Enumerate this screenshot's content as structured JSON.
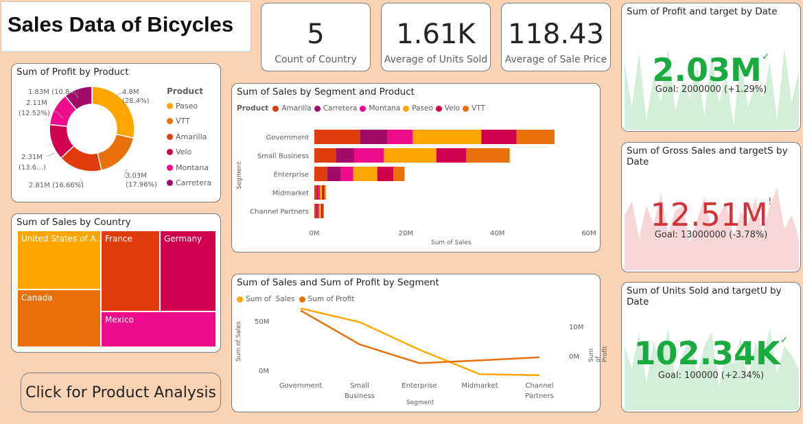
{
  "title": "Sales Data of Bicycles",
  "kpis": [
    {
      "value": "5",
      "label": "Count of Country"
    },
    {
      "value": "1.61K",
      "label": "Average of Units Sold"
    },
    {
      "value": "118.43",
      "label": "Average of Sale Price"
    }
  ],
  "colors": {
    "paseo": "#ffa600",
    "vtt": "#e8700a",
    "amarilla": "#e03c0c",
    "velo": "#d1004f",
    "montana": "#ef0c8c",
    "carretera": "#a10c68",
    "green": "#1aab40",
    "red": "#d13438"
  },
  "profit_by_product": {
    "title": "Sum of Profit by Product",
    "legend_title": "Product",
    "legend": [
      "Paseo",
      "VTT",
      "Amarilla",
      "Velo",
      "Montana",
      "Carretera"
    ],
    "labels": {
      "paseo_v": "4.8M",
      "paseo_p": "(28.4%)",
      "vtt_v": "3.03M",
      "vtt_p": "(17.96%)",
      "amarilla": "2.81M (16.66%)",
      "velo_v": "2.31M",
      "velo_p": "(13.6…)",
      "montana_v": "2.11M",
      "montana_p": "(12.52%)",
      "carretera": "1.83M (10.8…)"
    },
    "chart_data": {
      "type": "pie",
      "categories": [
        "Paseo",
        "VTT",
        "Amarilla",
        "Velo",
        "Montana",
        "Carretera"
      ],
      "values": [
        4.8,
        3.03,
        2.81,
        2.31,
        2.11,
        1.83
      ],
      "percents": [
        28.4,
        17.96,
        16.66,
        13.6,
        12.52,
        10.8
      ]
    }
  },
  "sales_by_country": {
    "title": "Sum of Sales by Country",
    "tiles": [
      "United States of A...",
      "France",
      "Germany",
      "Canada",
      "Mexico"
    ]
  },
  "button_label": "Click for Product Analysis",
  "segment_product": {
    "title": "Sum of Sales by Segment and Product",
    "legend_title": "Product",
    "legend": [
      "Amarilla",
      "Carretera",
      "Montana",
      "Paseo",
      "Velo",
      "VTT"
    ],
    "y_axis_title": "Segment",
    "x_axis_title": "Sum of Sales",
    "x_ticks": [
      "0M",
      "20M",
      "40M",
      "60M"
    ],
    "chart_data": {
      "type": "bar",
      "categories": [
        "Government",
        "Small Business",
        "Enterprise",
        "Midmarket",
        "Channel Partners"
      ],
      "series": [
        {
          "name": "Amarilla",
          "values": [
            10,
            4.7,
            2.8,
            0.5,
            0.4
          ]
        },
        {
          "name": "Carretera",
          "values": [
            6,
            4,
            3,
            0.3,
            0.3
          ]
        },
        {
          "name": "Montana",
          "values": [
            5.5,
            6.5,
            2.7,
            0.4,
            0.3
          ]
        },
        {
          "name": "Paseo",
          "values": [
            15,
            11.5,
            5.3,
            0.5,
            0.5
          ]
        },
        {
          "name": "Velo",
          "values": [
            7.7,
            6.5,
            3.5,
            0.4,
            0.3
          ]
        },
        {
          "name": "VTT",
          "values": [
            8.3,
            9.5,
            2.4,
            0.4,
            0.3
          ]
        }
      ],
      "xlim": [
        0,
        60
      ]
    }
  },
  "sales_profit_segment": {
    "title": "Sum of Sales and Sum of Profit by Segment",
    "legend": [
      "Sum of  Sales",
      "Sum of Profit"
    ],
    "left_axis_title": "Sum of Sales",
    "right_axis_title": "Sum of Profit",
    "x_axis_title": "Segment",
    "left_ticks": [
      "50M",
      "0M"
    ],
    "right_ticks": [
      "10M",
      "0M"
    ],
    "categories": [
      "Government",
      "Small\nBusiness",
      "Enterprise",
      "Midmarket",
      "Channel\nPartners"
    ],
    "chart_data": {
      "type": "line",
      "x": [
        "Government",
        "Small Business",
        "Enterprise",
        "Midmarket",
        "Channel Partners"
      ],
      "series": [
        {
          "name": "Sum of  Sales",
          "axis": "left",
          "values": [
            52.5,
            42,
            21,
            2.4,
            1.6
          ]
        },
        {
          "name": "Sum of Profit",
          "axis": "right",
          "values": [
            11.4,
            4.1,
            0.05,
            0.65,
            1.32
          ]
        }
      ],
      "left_range": [
        0,
        60
      ],
      "right_range": [
        -3,
        14
      ]
    }
  },
  "goals": [
    {
      "title": "Sum of Profit and target by Date",
      "value": "2.03M",
      "status": "✓",
      "goal": "Goal: 2000000 (+1.29%)",
      "state": "good"
    },
    {
      "title": "Sum of Gross Sales and targetS by Date",
      "value": "12.51M",
      "status": "!",
      "goal": "Goal: 13000000 (-3.78%)",
      "state": "bad"
    },
    {
      "title": "Sum of Units Sold and targetU by Date",
      "value": "102.34K",
      "status": "✓",
      "goal": "Goal: 100000 (+2.34%)",
      "state": "good"
    }
  ]
}
